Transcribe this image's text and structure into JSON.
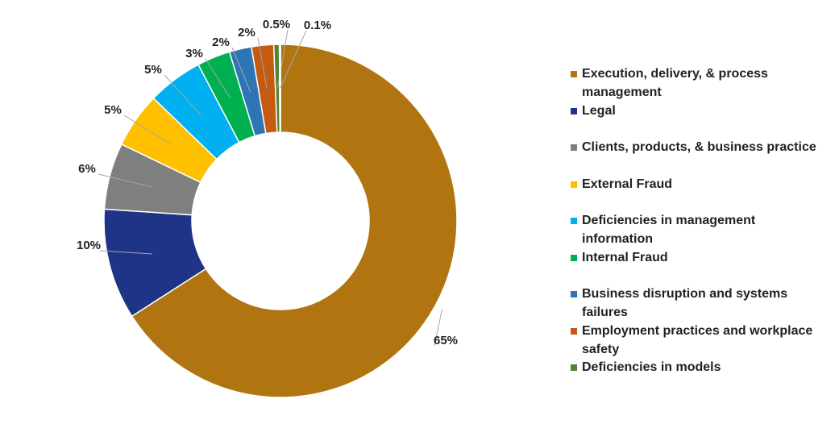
{
  "chart_data": {
    "type": "pie",
    "categories": [
      "Execution, delivery, & process management",
      "Legal",
      "Clients, products, & business practice",
      "External Fraud",
      "Deficiencies in management information",
      "Internal Fraud",
      "Business disruption and systems failures",
      "Employment practices and workplace safety",
      "Deficiencies in models",
      null
    ],
    "values": [
      65,
      10,
      6,
      5,
      5,
      3,
      2,
      2,
      0.5,
      0.1
    ],
    "value_labels": [
      "65%",
      "10%",
      "6%",
      "5%",
      "5%",
      "3%",
      "2%",
      "2%",
      "0.5%",
      "0.1%"
    ],
    "colors": [
      "#b07510",
      "#203487",
      "#7f7f7f",
      "#ffc000",
      "#00b0f0",
      "#00b050",
      "#2e75b6",
      "#c55a11",
      "#548235",
      "#e8d49a"
    ]
  }
}
